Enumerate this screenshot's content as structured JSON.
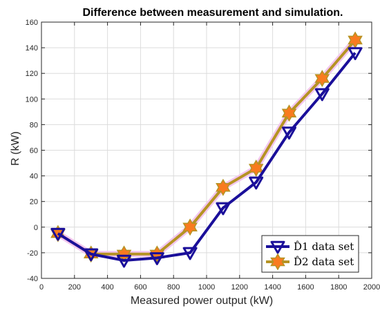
{
  "chart_data": {
    "type": "line",
    "title": "Difference between measurement and simulation.",
    "xlabel": "Measured power output (kW)",
    "ylabel": "R (kW)",
    "xlim": [
      0,
      2000
    ],
    "ylim": [
      -40,
      160
    ],
    "xticks": [
      0,
      200,
      400,
      600,
      800,
      1000,
      1200,
      1400,
      1600,
      1800,
      2000
    ],
    "yticks": [
      -40,
      -20,
      0,
      20,
      40,
      60,
      80,
      100,
      120,
      140,
      160
    ],
    "grid": true,
    "legend_position": "bottom-right",
    "series": [
      {
        "name": "D̂1 data set",
        "color": "#1a0f9a",
        "marker": "triangle-down",
        "x": [
          100,
          300,
          500,
          700,
          900,
          1100,
          1300,
          1500,
          1700,
          1900
        ],
        "y": [
          -5,
          -21,
          -26,
          -24,
          -20,
          15,
          35,
          74,
          104,
          136
        ]
      },
      {
        "name": "D̂2 data set",
        "color": "#f97b1f",
        "marker": "hexagram",
        "line_color": "#b59323",
        "x": [
          100,
          300,
          500,
          700,
          900,
          1100,
          1300,
          1500,
          1700,
          1900
        ],
        "y": [
          -5,
          -21,
          -21,
          -21,
          0,
          31,
          46,
          89,
          116,
          146
        ]
      }
    ]
  }
}
